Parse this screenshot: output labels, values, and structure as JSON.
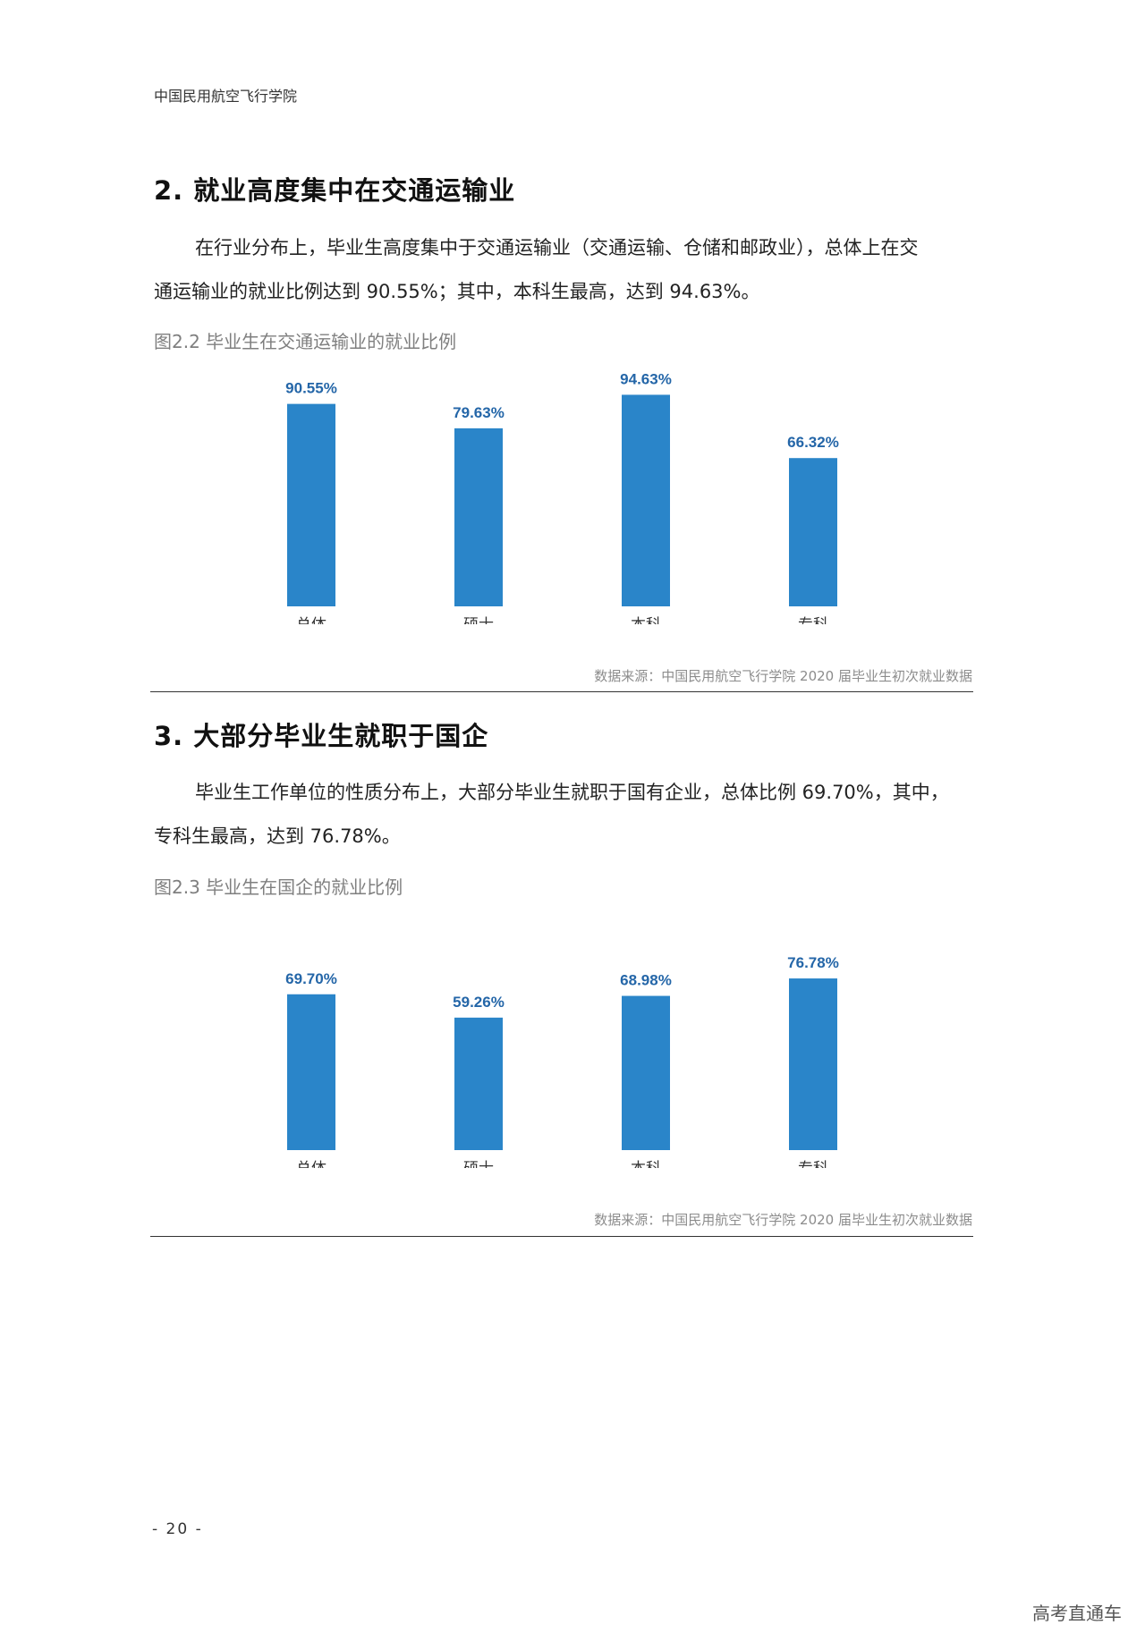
{
  "header": {
    "title": "中国民用航空飞行学院"
  },
  "sections": [
    {
      "title": "2. 就业高度集中在交通运输业",
      "paragraph_line1": "在行业分布上，毕业生高度集中于交通运输业（交通运输、仓储和邮政业），总体上在交",
      "paragraph_line2": "通运输业的就业比例达到 90.55%；其中，本科生最高，达到 94.63%。",
      "figure_caption": "图2.2 毕业生在交通运输业的就业比例",
      "source": "数据来源：中国民用航空飞行学院 2020 届毕业生初次就业数据"
    },
    {
      "title": "3. 大部分毕业生就职于国企",
      "paragraph_line1": "毕业生工作单位的性质分布上，大部分毕业生就职于国有企业，总体比例 69.70%，其中，",
      "paragraph_line2": "专科生最高，达到 76.78%。",
      "figure_caption": "图2.3 毕业生在国企的就业比例",
      "source": "数据来源：中国民用航空飞行学院 2020 届毕业生初次就业数据"
    }
  ],
  "footer": {
    "page_number": "- 20 -",
    "watermark": "高考直通车"
  },
  "colors": {
    "bar": "#2a85c9",
    "value_label": "#2466a8"
  },
  "chart_data": [
    {
      "type": "bar",
      "title": "图2.2 毕业生在交通运输业的就业比例",
      "categories": [
        "总体",
        "硕士",
        "本科",
        "专科"
      ],
      "values": [
        90.55,
        79.63,
        94.63,
        66.32
      ],
      "value_labels": [
        "90.55%",
        "79.63%",
        "94.63%",
        "66.32%"
      ],
      "xlabel": "",
      "ylabel": "",
      "ylim": [
        0,
        100
      ],
      "grid": false,
      "legend": "none"
    },
    {
      "type": "bar",
      "title": "图2.3 毕业生在国企的就业比例",
      "categories": [
        "总体",
        "硕士",
        "本科",
        "专科"
      ],
      "values": [
        69.7,
        59.26,
        68.98,
        76.78
      ],
      "value_labels": [
        "69.70%",
        "59.26%",
        "68.98%",
        "76.78%"
      ],
      "xlabel": "",
      "ylabel": "",
      "ylim": [
        0,
        100
      ],
      "grid": false,
      "legend": "none"
    }
  ]
}
